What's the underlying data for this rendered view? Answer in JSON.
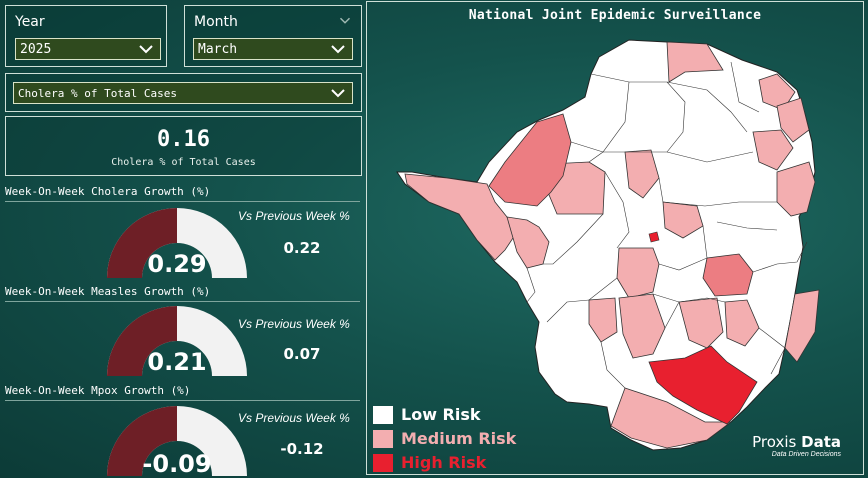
{
  "filters": {
    "year": {
      "label": "Year",
      "value": "2025"
    },
    "month": {
      "label": "Month",
      "value": "March"
    },
    "measure": {
      "value": "Cholera % of Total Cases"
    }
  },
  "kpi": {
    "value": "0.16",
    "label": "Cholera % of Total Cases"
  },
  "gauges": [
    {
      "title": "Week-On-Week Cholera Growth (%)",
      "value": "0.29",
      "vs_label": "Vs Previous Week %",
      "vs_value": "0.22"
    },
    {
      "title": "Week-On-Week Measles Growth (%)",
      "value": "0.21",
      "vs_label": "Vs Previous Week %",
      "vs_value": "0.07"
    },
    {
      "title": "Week-On-Week Mpox Growth (%)",
      "value": "-0.09",
      "vs_label": "Vs Previous Week %",
      "vs_value": "-0.12"
    }
  ],
  "map": {
    "title": "National Joint Epidemic Surveillance",
    "legend": [
      {
        "label": "Low Risk",
        "color": "#ffffff"
      },
      {
        "label": "Medium Risk",
        "color": "#f3aeb0"
      },
      {
        "label": "High Risk",
        "color": "#e8202f"
      }
    ]
  },
  "brand": {
    "name_part1": "Proxis",
    "name_part2": "Data",
    "tagline": "Data Driven Decisions"
  },
  "colors": {
    "gauge_fill": "#6e1f26",
    "gauge_track": "#f2f2f2",
    "low": "#ffffff",
    "medium": "#f3aeb0",
    "medium_high": "#ec7d82",
    "high": "#e8202f"
  }
}
